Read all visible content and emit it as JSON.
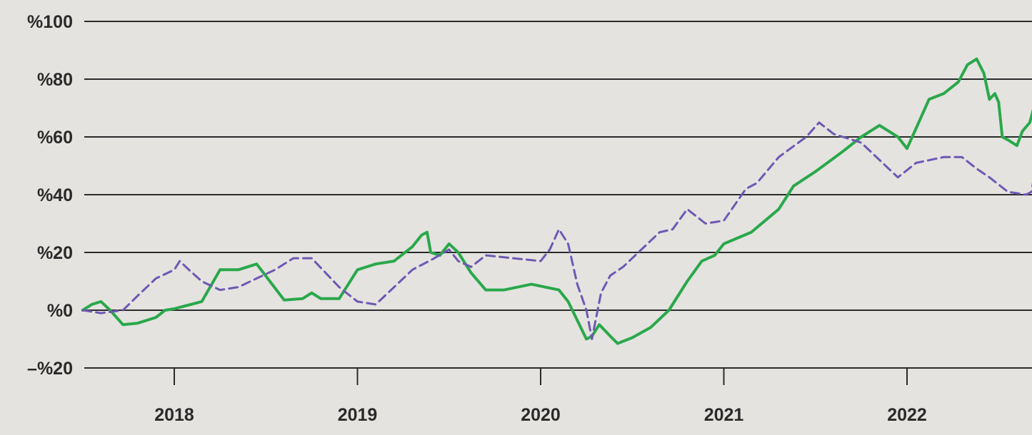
{
  "chart_data": {
    "type": "line",
    "title": "",
    "xlabel": "",
    "ylabel": "",
    "xlim": [
      2017.5,
      2022.7
    ],
    "ylim": [
      -20,
      100
    ],
    "y_ticks": [
      {
        "value": 100,
        "label": "%100"
      },
      {
        "value": 80,
        "label": "%80"
      },
      {
        "value": 60,
        "label": "%60"
      },
      {
        "value": 40,
        "label": "%40"
      },
      {
        "value": 20,
        "label": "%20"
      },
      {
        "value": 0,
        "label": "%0"
      },
      {
        "value": -20,
        "label": "–%20"
      }
    ],
    "x_ticks": [
      {
        "value": 2018,
        "label": "2018"
      },
      {
        "value": 2019,
        "label": "2019"
      },
      {
        "value": 2020,
        "label": "2020"
      },
      {
        "value": 2021,
        "label": "2021"
      },
      {
        "value": 2022,
        "label": "2022"
      }
    ],
    "grid": true,
    "legend": "none",
    "colors": {
      "background": "#e4e3e0",
      "grid": "#2b2b2b",
      "text": "#2a2a2a"
    },
    "series": [
      {
        "style": "solid",
        "color": "#2aa84a",
        "points": [
          [
            2017.5,
            0
          ],
          [
            2017.55,
            2
          ],
          [
            2017.6,
            3
          ],
          [
            2017.65,
            0
          ],
          [
            2017.72,
            -5
          ],
          [
            2017.8,
            -4.5
          ],
          [
            2017.9,
            -2.5
          ],
          [
            2017.95,
            0
          ],
          [
            2018.0,
            0.5
          ],
          [
            2018.15,
            3
          ],
          [
            2018.25,
            14
          ],
          [
            2018.35,
            14
          ],
          [
            2018.45,
            16
          ],
          [
            2018.6,
            3.5
          ],
          [
            2018.7,
            4
          ],
          [
            2018.75,
            6
          ],
          [
            2018.8,
            4
          ],
          [
            2018.9,
            4
          ],
          [
            2019.0,
            14
          ],
          [
            2019.1,
            16
          ],
          [
            2019.2,
            17
          ],
          [
            2019.3,
            22
          ],
          [
            2019.35,
            26
          ],
          [
            2019.38,
            27
          ],
          [
            2019.4,
            20
          ],
          [
            2019.45,
            19
          ],
          [
            2019.5,
            23
          ],
          [
            2019.55,
            20
          ],
          [
            2019.62,
            13
          ],
          [
            2019.7,
            7
          ],
          [
            2019.8,
            7
          ],
          [
            2019.95,
            9
          ],
          [
            2020.1,
            7
          ],
          [
            2020.15,
            3
          ],
          [
            2020.25,
            -10
          ],
          [
            2020.28,
            -9
          ],
          [
            2020.32,
            -5
          ],
          [
            2020.38,
            -9
          ],
          [
            2020.42,
            -11.5
          ],
          [
            2020.5,
            -9.5
          ],
          [
            2020.6,
            -6
          ],
          [
            2020.7,
            0
          ],
          [
            2020.8,
            10
          ],
          [
            2020.88,
            17
          ],
          [
            2020.95,
            19
          ],
          [
            2021.0,
            23
          ],
          [
            2021.15,
            27
          ],
          [
            2021.3,
            35
          ],
          [
            2021.38,
            43
          ],
          [
            2021.5,
            48
          ],
          [
            2021.65,
            55
          ],
          [
            2021.75,
            60
          ],
          [
            2021.85,
            64
          ],
          [
            2021.95,
            60
          ],
          [
            2022.0,
            56
          ],
          [
            2022.05,
            63
          ],
          [
            2022.12,
            73
          ],
          [
            2022.2,
            75
          ],
          [
            2022.28,
            79
          ],
          [
            2022.33,
            85
          ],
          [
            2022.38,
            87
          ],
          [
            2022.42,
            82
          ],
          [
            2022.45,
            73
          ],
          [
            2022.48,
            75
          ],
          [
            2022.5,
            72
          ],
          [
            2022.52,
            60
          ],
          [
            2022.55,
            59
          ],
          [
            2022.6,
            57
          ],
          [
            2022.63,
            62
          ],
          [
            2022.67,
            65
          ],
          [
            2022.7,
            72
          ]
        ]
      },
      {
        "style": "dashed",
        "color": "#6e58b3",
        "points": [
          [
            2017.5,
            0
          ],
          [
            2017.6,
            -1
          ],
          [
            2017.72,
            0
          ],
          [
            2017.8,
            5
          ],
          [
            2017.9,
            11
          ],
          [
            2018.0,
            14
          ],
          [
            2018.03,
            17
          ],
          [
            2018.08,
            14
          ],
          [
            2018.15,
            10
          ],
          [
            2018.25,
            7
          ],
          [
            2018.35,
            8
          ],
          [
            2018.45,
            11
          ],
          [
            2018.55,
            14
          ],
          [
            2018.65,
            18
          ],
          [
            2018.75,
            18
          ],
          [
            2018.9,
            8
          ],
          [
            2019.0,
            3
          ],
          [
            2019.1,
            2
          ],
          [
            2019.2,
            8
          ],
          [
            2019.3,
            14
          ],
          [
            2019.42,
            18
          ],
          [
            2019.5,
            21
          ],
          [
            2019.55,
            17
          ],
          [
            2019.62,
            15
          ],
          [
            2019.7,
            19
          ],
          [
            2019.85,
            18
          ],
          [
            2020.0,
            17
          ],
          [
            2020.05,
            21
          ],
          [
            2020.1,
            28
          ],
          [
            2020.15,
            23
          ],
          [
            2020.2,
            9
          ],
          [
            2020.25,
            0
          ],
          [
            2020.28,
            -10
          ],
          [
            2020.33,
            6
          ],
          [
            2020.38,
            12
          ],
          [
            2020.45,
            15
          ],
          [
            2020.55,
            21
          ],
          [
            2020.65,
            27
          ],
          [
            2020.72,
            28
          ],
          [
            2020.8,
            35
          ],
          [
            2020.9,
            30
          ],
          [
            2021.0,
            31
          ],
          [
            2021.12,
            42
          ],
          [
            2021.18,
            44
          ],
          [
            2021.3,
            53
          ],
          [
            2021.45,
            60
          ],
          [
            2021.52,
            65
          ],
          [
            2021.6,
            61
          ],
          [
            2021.75,
            58
          ],
          [
            2021.85,
            52
          ],
          [
            2021.95,
            46
          ],
          [
            2022.05,
            51
          ],
          [
            2022.2,
            53
          ],
          [
            2022.3,
            53
          ],
          [
            2022.38,
            49
          ],
          [
            2022.45,
            46
          ],
          [
            2022.55,
            41
          ],
          [
            2022.65,
            40
          ],
          [
            2022.68,
            41
          ],
          [
            2022.7,
            49
          ]
        ]
      }
    ]
  }
}
